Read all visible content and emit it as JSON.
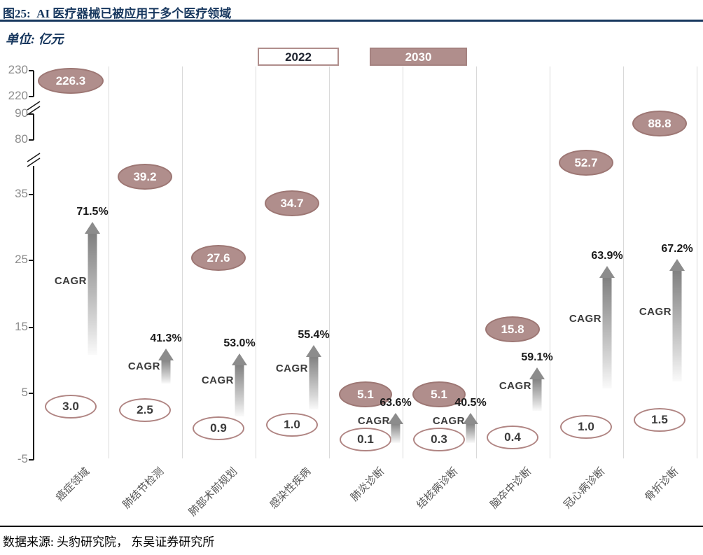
{
  "header": {
    "title": "图25:  AI 医疗器械已被应用于多个医疗领域"
  },
  "unit_label": "单位: 亿元",
  "cagr_label": "CAGR",
  "source": "数据来源: 头豹研究院， 东吴证券研究所",
  "chart_data": {
    "type": "scatter",
    "title": "AI 医疗器械已被应用于多个医疗领域",
    "unit": "亿元",
    "legend": [
      "2022",
      "2030"
    ],
    "legend_position": "top-center",
    "grid": "vertical-only",
    "categories": [
      "癌症领域",
      "肺结节检测",
      "肺部术前规划",
      "感染性疾病",
      "肺炎诊断",
      "结核病诊断",
      "脑卒中诊断",
      "冠心病诊断",
      "骨折诊断"
    ],
    "series": [
      {
        "name": "2022",
        "values": [
          3.0,
          2.5,
          0.9,
          1.0,
          0.1,
          0.3,
          0.4,
          1.0,
          1.5
        ]
      },
      {
        "name": "2030",
        "values": [
          226.3,
          39.2,
          27.6,
          34.7,
          5.1,
          5.1,
          15.8,
          52.7,
          88.8
        ]
      }
    ],
    "cagr_percent": [
      "71.5%",
      "41.3%",
      "53.0%",
      "55.4%",
      "63.6%",
      "40.5%",
      "59.1%",
      "63.9%",
      "67.2%"
    ],
    "y_ticks": [
      230,
      220,
      90,
      80,
      35,
      25,
      15,
      5,
      -5
    ],
    "axis_breaks": [
      [
        220,
        90
      ],
      [
        80,
        35
      ]
    ],
    "ylim_segments": [
      [
        -5,
        35
      ],
      [
        80,
        90
      ],
      [
        220,
        230
      ]
    ],
    "colors": {
      "bubble_2030_fill": "#b08e8c",
      "bubble_2030_border": "#9d7774",
      "bubble_2022_border": "#b08583",
      "title_navy": "#17375e",
      "arrow_gray": "#8c8c8c",
      "gridline": "#d9d9d9",
      "tick_text": "#8c8c8c"
    }
  }
}
